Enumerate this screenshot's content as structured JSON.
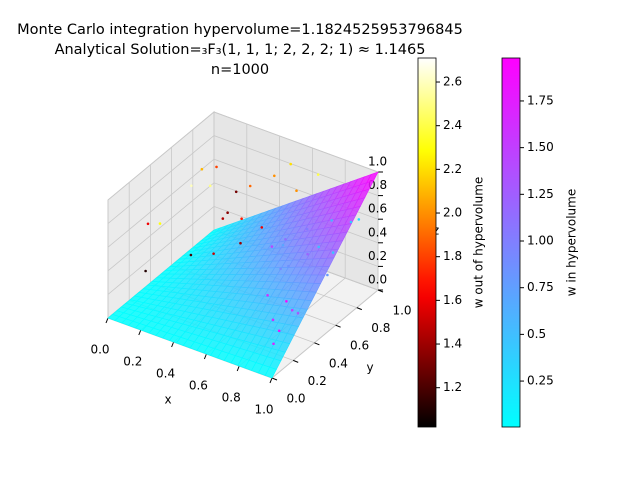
{
  "chart_data": {
    "type": "scatter3d",
    "title": [
      "Monte Carlo integration hypervolume=1.1824525953796845",
      "Analytical Solution=₃F₃(1, 1, 1; 2, 2, 2; 1) ≈ 1.1465",
      "n=1000"
    ],
    "xlabel": "x",
    "ylabel": "y",
    "zlabel": "z",
    "xlim": [
      0,
      1
    ],
    "ylim": [
      0,
      1
    ],
    "zlim": [
      0,
      1
    ],
    "xticks": [
      {
        "value": 0,
        "label": "0.0"
      },
      {
        "value": 0.2,
        "label": "0.2"
      },
      {
        "value": 0.4,
        "label": "0.4"
      },
      {
        "value": 0.6,
        "label": "0.6"
      },
      {
        "value": 0.8,
        "label": "0.8"
      },
      {
        "value": 1,
        "label": "1.0"
      }
    ],
    "yticks": [
      {
        "value": 0,
        "label": "0.0"
      },
      {
        "value": 0.2,
        "label": "0.2"
      },
      {
        "value": 0.4,
        "label": "0.4"
      },
      {
        "value": 0.6,
        "label": "0.6"
      },
      {
        "value": 0.8,
        "label": "0.8"
      },
      {
        "value": 1,
        "label": "1.0"
      }
    ],
    "zticks": [
      {
        "value": 0,
        "label": "0.0"
      },
      {
        "value": 0.2,
        "label": "0.2"
      },
      {
        "value": 0.4,
        "label": "0.4"
      },
      {
        "value": 0.6,
        "label": "0.6"
      },
      {
        "value": 0.8,
        "label": "0.8"
      },
      {
        "value": 1,
        "label": "1.0"
      }
    ],
    "grid": true,
    "surface_colormap": "cool",
    "series": [
      {
        "colormap": "hot",
        "x": [
          0.05,
          0.12,
          0.2,
          0.3,
          0.35,
          0.42,
          0.5,
          0.1,
          0.25,
          0.6,
          0.15,
          0.08,
          0.45,
          0.33,
          0.7,
          0.22,
          0.55,
          0.18,
          0.4,
          0.28
        ],
        "y": [
          0.3,
          0.7,
          0.9,
          0.5,
          0.8,
          0.6,
          0.95,
          0.2,
          0.4,
          0.85,
          0.55,
          0.9,
          0.3,
          0.75,
          0.9,
          0.15,
          0.6,
          0.85,
          0.95,
          0.65
        ],
        "z": [
          0.6,
          0.8,
          0.5,
          0.9,
          0.7,
          0.4,
          0.85,
          0.3,
          0.95,
          0.75,
          0.2,
          0.65,
          0.55,
          0.45,
          0.9,
          0.8,
          0.6,
          0.35,
          0.7,
          0.5
        ],
        "w": [
          1.6,
          2.1,
          1.3,
          2.5,
          1.9,
          1.4,
          2.2,
          1.1,
          2.6,
          2.0,
          1.2,
          1.8,
          1.5,
          1.7,
          2.4,
          2.3,
          1.6,
          1.35,
          2.0,
          1.45
        ]
      },
      {
        "colormap": "cool",
        "x": [
          0.6,
          0.8,
          0.9,
          0.7,
          0.95,
          0.5,
          0.85,
          0.75,
          0.65,
          0.9,
          0.55,
          0.8,
          0.7,
          0.98,
          0.6,
          0.88,
          0.45,
          0.78,
          0.92,
          0.68
        ],
        "y": [
          0.7,
          0.5,
          0.9,
          0.8,
          0.6,
          0.9,
          0.3,
          0.95,
          0.5,
          0.4,
          0.8,
          0.75,
          0.6,
          0.85,
          0.95,
          0.2,
          0.85,
          0.35,
          0.7,
          0.65
        ],
        "z": [
          0.2,
          0.1,
          0.6,
          0.3,
          0.4,
          0.25,
          0.1,
          0.5,
          0.15,
          0.2,
          0.3,
          0.45,
          0.05,
          0.7,
          0.35,
          0.08,
          0.2,
          0.12,
          0.5,
          0.3
        ],
        "w": [
          0.9,
          1.5,
          0.4,
          1.2,
          0.8,
          1.1,
          1.8,
          0.6,
          1.6,
          1.3,
          0.7,
          0.5,
          1.9,
          0.3,
          1.0,
          1.7,
          1.4,
          1.6,
          0.45,
          0.85
        ]
      }
    ],
    "colorbars": [
      {
        "label": "w out of hypervolume",
        "colormap": "hot",
        "clim": [
          1.02,
          2.71
        ],
        "ticks": [
          {
            "value": 1.2,
            "label": "1.2"
          },
          {
            "value": 1.4,
            "label": "1.4"
          },
          {
            "value": 1.6,
            "label": "1.6"
          },
          {
            "value": 1.8,
            "label": "1.8"
          },
          {
            "value": 2.0,
            "label": "2.0"
          },
          {
            "value": 2.2,
            "label": "2.2"
          },
          {
            "value": 2.4,
            "label": "2.4"
          },
          {
            "value": 2.6,
            "label": "2.6"
          }
        ]
      },
      {
        "label": "w in hypervolume",
        "colormap": "cool",
        "clim": [
          0.004,
          1.98
        ],
        "ticks": [
          0.25,
          0.5,
          0.75,
          {
            "value": 1,
            "label": "1.00"
          },
          1.25,
          {
            "value": 1.5,
            "label": "1.50"
          },
          1.75
        ]
      }
    ]
  }
}
